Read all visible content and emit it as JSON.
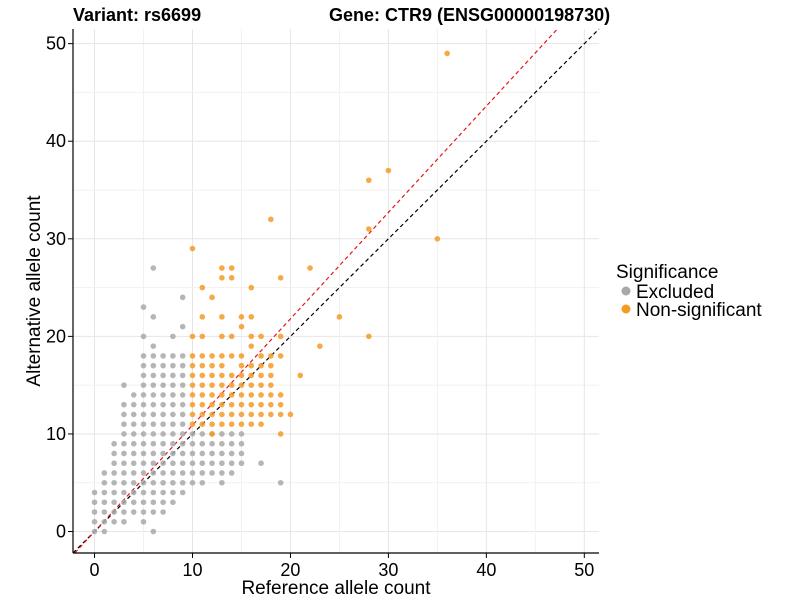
{
  "chart_data": {
    "type": "scatter",
    "title_left": "Variant: rs6699",
    "title_right": "Gene: CTR9 (ENSG00000198730)",
    "xlabel": "Reference allele count",
    "ylabel": "Alternative allele count",
    "xlim": [
      -2.2,
      51.5
    ],
    "ylim": [
      -2.2,
      51.5
    ],
    "x_ticks": [
      0,
      10,
      20,
      30,
      40,
      50
    ],
    "y_ticks": [
      0,
      10,
      20,
      30,
      40,
      50
    ],
    "grid": true,
    "legend": {
      "title": "Significance",
      "position": "right",
      "entries": [
        {
          "label": "Excluded",
          "color": "#a8a8a8"
        },
        {
          "label": "Non-significant",
          "color": "#f59a23"
        }
      ]
    },
    "reference_lines": [
      {
        "kind": "identity",
        "slope": 1,
        "intercept": 0,
        "color": "#000000",
        "style": "dashed"
      },
      {
        "kind": "fit",
        "slope": 1.09,
        "intercept": 0,
        "color": "#e8141c",
        "style": "dashed"
      }
    ],
    "series": [
      {
        "name": "Excluded",
        "color": "#a8a8a8",
        "points": [
          [
            0,
            0
          ],
          [
            0,
            1
          ],
          [
            0,
            2
          ],
          [
            0,
            3
          ],
          [
            0,
            4
          ],
          [
            1,
            0
          ],
          [
            1,
            1
          ],
          [
            1,
            2
          ],
          [
            1,
            3
          ],
          [
            1,
            4
          ],
          [
            1,
            5
          ],
          [
            1,
            6
          ],
          [
            2,
            1
          ],
          [
            2,
            2
          ],
          [
            2,
            3
          ],
          [
            2,
            4
          ],
          [
            2,
            5
          ],
          [
            2,
            6
          ],
          [
            2,
            7
          ],
          [
            2,
            8
          ],
          [
            2,
            9
          ],
          [
            3,
            1
          ],
          [
            3,
            2
          ],
          [
            3,
            3
          ],
          [
            3,
            4
          ],
          [
            3,
            5
          ],
          [
            3,
            6
          ],
          [
            3,
            7
          ],
          [
            3,
            8
          ],
          [
            3,
            9
          ],
          [
            3,
            10
          ],
          [
            3,
            11
          ],
          [
            3,
            12
          ],
          [
            3,
            13
          ],
          [
            3,
            15
          ],
          [
            4,
            2
          ],
          [
            4,
            3
          ],
          [
            4,
            4
          ],
          [
            4,
            5
          ],
          [
            4,
            6
          ],
          [
            4,
            7
          ],
          [
            4,
            8
          ],
          [
            4,
            9
          ],
          [
            4,
            10
          ],
          [
            4,
            11
          ],
          [
            4,
            12
          ],
          [
            4,
            13
          ],
          [
            4,
            14
          ],
          [
            5,
            1
          ],
          [
            5,
            2
          ],
          [
            5,
            3
          ],
          [
            5,
            4
          ],
          [
            5,
            5
          ],
          [
            5,
            6
          ],
          [
            5,
            7
          ],
          [
            5,
            8
          ],
          [
            5,
            9
          ],
          [
            5,
            10
          ],
          [
            5,
            11
          ],
          [
            5,
            12
          ],
          [
            5,
            13
          ],
          [
            5,
            14
          ],
          [
            5,
            15
          ],
          [
            5,
            16
          ],
          [
            5,
            17
          ],
          [
            5,
            18
          ],
          [
            5,
            20
          ],
          [
            5,
            23
          ],
          [
            6,
            0
          ],
          [
            6,
            2
          ],
          [
            6,
            3
          ],
          [
            6,
            4
          ],
          [
            6,
            5
          ],
          [
            6,
            6
          ],
          [
            6,
            7
          ],
          [
            6,
            8
          ],
          [
            6,
            9
          ],
          [
            6,
            10
          ],
          [
            6,
            11
          ],
          [
            6,
            12
          ],
          [
            6,
            13
          ],
          [
            6,
            14
          ],
          [
            6,
            15
          ],
          [
            6,
            16
          ],
          [
            6,
            17
          ],
          [
            6,
            18
          ],
          [
            6,
            19
          ],
          [
            6,
            22
          ],
          [
            6,
            27
          ],
          [
            7,
            2
          ],
          [
            7,
            3
          ],
          [
            7,
            4
          ],
          [
            7,
            5
          ],
          [
            7,
            6
          ],
          [
            7,
            7
          ],
          [
            7,
            8
          ],
          [
            7,
            9
          ],
          [
            7,
            10
          ],
          [
            7,
            11
          ],
          [
            7,
            12
          ],
          [
            7,
            13
          ],
          [
            7,
            14
          ],
          [
            7,
            15
          ],
          [
            7,
            16
          ],
          [
            7,
            17
          ],
          [
            7,
            18
          ],
          [
            8,
            3
          ],
          [
            8,
            4
          ],
          [
            8,
            5
          ],
          [
            8,
            6
          ],
          [
            8,
            7
          ],
          [
            8,
            8
          ],
          [
            8,
            9
          ],
          [
            8,
            10
          ],
          [
            8,
            11
          ],
          [
            8,
            12
          ],
          [
            8,
            13
          ],
          [
            8,
            14
          ],
          [
            8,
            15
          ],
          [
            8,
            16
          ],
          [
            8,
            17
          ],
          [
            8,
            18
          ],
          [
            8,
            20
          ],
          [
            9,
            4
          ],
          [
            9,
            5
          ],
          [
            9,
            6
          ],
          [
            9,
            7
          ],
          [
            9,
            8
          ],
          [
            9,
            9
          ],
          [
            9,
            10
          ],
          [
            9,
            11
          ],
          [
            9,
            12
          ],
          [
            9,
            13
          ],
          [
            9,
            14
          ],
          [
            9,
            15
          ],
          [
            9,
            16
          ],
          [
            9,
            17
          ],
          [
            9,
            18
          ],
          [
            9,
            21
          ],
          [
            9,
            24
          ],
          [
            10,
            5
          ],
          [
            10,
            6
          ],
          [
            10,
            7
          ],
          [
            10,
            8
          ],
          [
            10,
            9
          ],
          [
            10,
            10
          ],
          [
            11,
            5
          ],
          [
            11,
            6
          ],
          [
            11,
            7
          ],
          [
            11,
            8
          ],
          [
            11,
            9
          ],
          [
            11,
            10
          ],
          [
            12,
            6
          ],
          [
            12,
            7
          ],
          [
            12,
            8
          ],
          [
            12,
            9
          ],
          [
            12,
            10
          ],
          [
            13,
            5
          ],
          [
            13,
            6
          ],
          [
            13,
            7
          ],
          [
            13,
            8
          ],
          [
            13,
            9
          ],
          [
            13,
            10
          ],
          [
            14,
            6
          ],
          [
            14,
            7
          ],
          [
            14,
            8
          ],
          [
            14,
            9
          ],
          [
            14,
            10
          ],
          [
            15,
            7
          ],
          [
            15,
            8
          ],
          [
            15,
            9
          ],
          [
            15,
            10
          ],
          [
            17,
            7
          ],
          [
            19,
            5
          ]
        ]
      },
      {
        "name": "Non-significant",
        "color": "#f59a23",
        "points": [
          [
            10,
            11
          ],
          [
            10,
            12
          ],
          [
            10,
            13
          ],
          [
            10,
            14
          ],
          [
            10,
            15
          ],
          [
            10,
            16
          ],
          [
            10,
            17
          ],
          [
            10,
            18
          ],
          [
            10,
            20
          ],
          [
            10,
            29
          ],
          [
            11,
            11
          ],
          [
            11,
            12
          ],
          [
            11,
            13
          ],
          [
            11,
            14
          ],
          [
            11,
            15
          ],
          [
            11,
            16
          ],
          [
            11,
            17
          ],
          [
            11,
            18
          ],
          [
            11,
            20
          ],
          [
            11,
            22
          ],
          [
            11,
            25
          ],
          [
            12,
            10
          ],
          [
            12,
            11
          ],
          [
            12,
            12
          ],
          [
            12,
            13
          ],
          [
            12,
            14
          ],
          [
            12,
            15
          ],
          [
            12,
            16
          ],
          [
            12,
            17
          ],
          [
            12,
            18
          ],
          [
            12,
            24
          ],
          [
            13,
            11
          ],
          [
            13,
            12
          ],
          [
            13,
            13
          ],
          [
            13,
            14
          ],
          [
            13,
            15
          ],
          [
            13,
            16
          ],
          [
            13,
            17
          ],
          [
            13,
            18
          ],
          [
            13,
            20
          ],
          [
            13,
            22
          ],
          [
            13,
            26
          ],
          [
            13,
            27
          ],
          [
            14,
            11
          ],
          [
            14,
            12
          ],
          [
            14,
            13
          ],
          [
            14,
            14
          ],
          [
            14,
            15
          ],
          [
            14,
            16
          ],
          [
            14,
            18
          ],
          [
            14,
            20
          ],
          [
            14,
            26
          ],
          [
            14,
            27
          ],
          [
            15,
            11
          ],
          [
            15,
            12
          ],
          [
            15,
            13
          ],
          [
            15,
            14
          ],
          [
            15,
            15
          ],
          [
            15,
            16
          ],
          [
            15,
            17
          ],
          [
            15,
            18
          ],
          [
            15,
            21
          ],
          [
            15,
            22
          ],
          [
            16,
            11
          ],
          [
            16,
            12
          ],
          [
            16,
            13
          ],
          [
            16,
            14
          ],
          [
            16,
            15
          ],
          [
            16,
            16
          ],
          [
            16,
            17
          ],
          [
            16,
            19
          ],
          [
            16,
            20
          ],
          [
            16,
            22
          ],
          [
            16,
            25
          ],
          [
            17,
            11
          ],
          [
            17,
            12
          ],
          [
            17,
            13
          ],
          [
            17,
            14
          ],
          [
            17,
            15
          ],
          [
            17,
            16
          ],
          [
            17,
            17
          ],
          [
            17,
            18
          ],
          [
            17,
            20
          ],
          [
            18,
            12
          ],
          [
            18,
            13
          ],
          [
            18,
            14
          ],
          [
            18,
            15
          ],
          [
            18,
            16
          ],
          [
            18,
            17
          ],
          [
            18,
            18
          ],
          [
            18,
            32
          ],
          [
            19,
            10
          ],
          [
            19,
            12
          ],
          [
            19,
            13
          ],
          [
            19,
            14
          ],
          [
            19,
            18
          ],
          [
            19,
            20
          ],
          [
            19,
            26
          ],
          [
            20,
            12
          ],
          [
            21,
            16
          ],
          [
            22,
            27
          ],
          [
            23,
            19
          ],
          [
            25,
            22
          ],
          [
            28,
            20
          ],
          [
            28,
            31
          ],
          [
            28,
            36
          ],
          [
            30,
            37
          ],
          [
            35,
            30
          ],
          [
            36,
            49
          ]
        ]
      }
    ]
  }
}
